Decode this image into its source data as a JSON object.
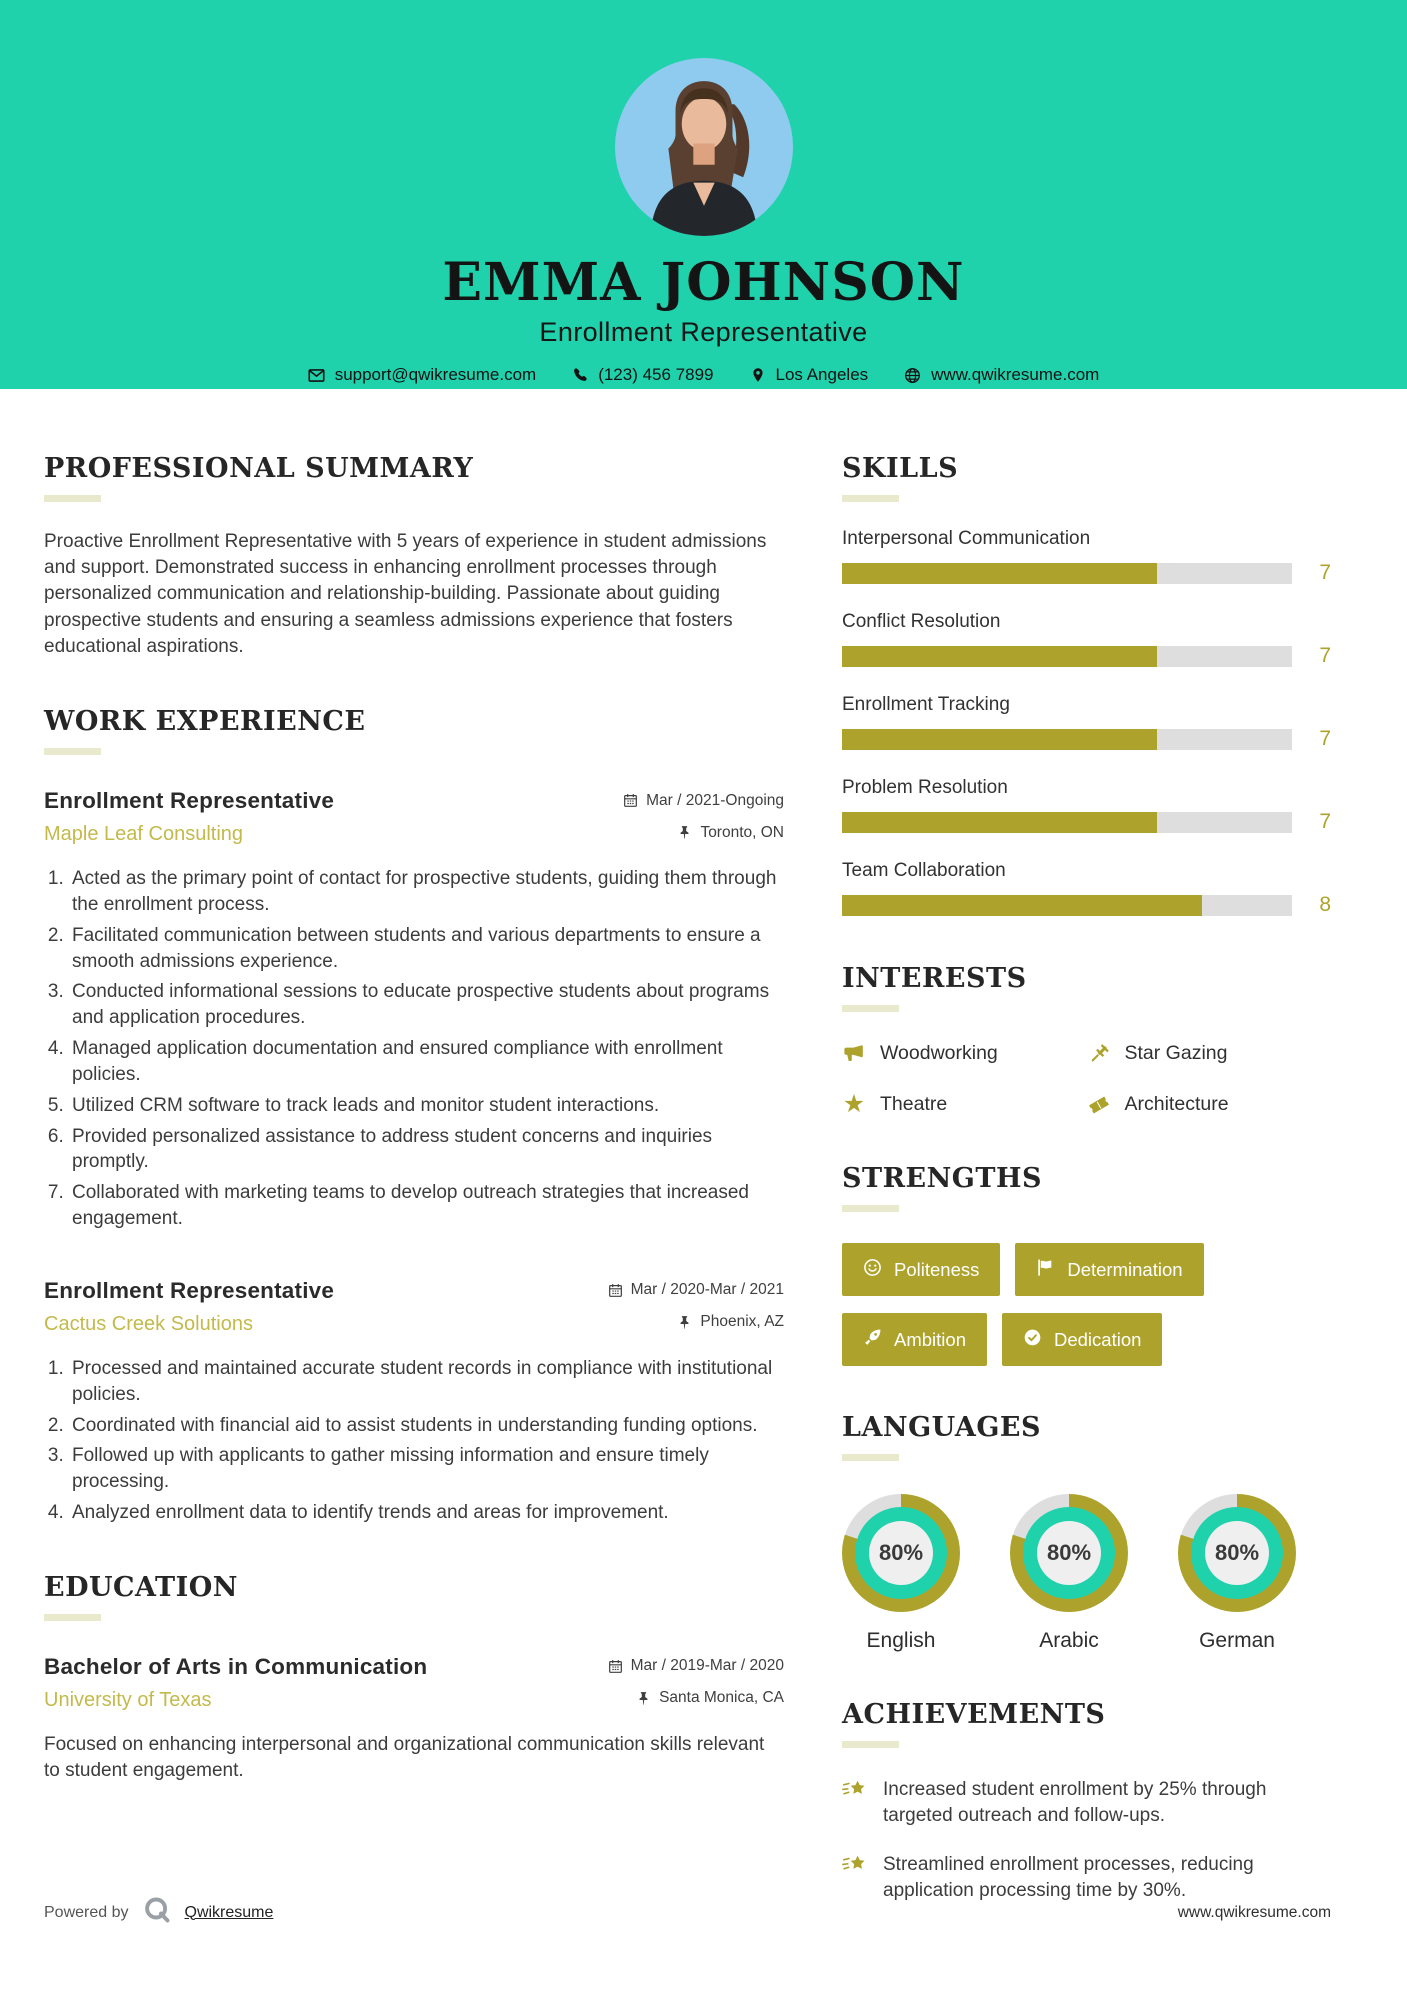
{
  "header": {
    "name": "EMMA JOHNSON",
    "title": "Enrollment Representative",
    "contacts": [
      {
        "icon": "envelope-icon",
        "text": "support@qwikresume.com"
      },
      {
        "icon": "phone-icon",
        "text": "(123) 456 7899"
      },
      {
        "icon": "map-marker-icon",
        "text": "Los Angeles"
      },
      {
        "icon": "globe-icon",
        "text": "www.qwikresume.com"
      }
    ]
  },
  "summary": {
    "heading": "PROFESSIONAL SUMMARY",
    "text": "Proactive Enrollment Representative with 5 years of experience in student admissions and support. Demonstrated success in enhancing enrollment processes through personalized communication and relationship-building. Passionate about guiding prospective students and ensuring a seamless admissions experience that fosters educational aspirations."
  },
  "work": {
    "heading": "WORK EXPERIENCE",
    "jobs": [
      {
        "title": "Enrollment Representative",
        "company": "Maple Leaf Consulting",
        "dates": "Mar / 2021-Ongoing",
        "location": "Toronto, ON",
        "bullets": [
          "Acted as the primary point of contact for prospective students, guiding them through the enrollment process.",
          "Facilitated communication between students and various departments to ensure a smooth admissions experience.",
          "Conducted informational sessions to educate prospective students about programs and application procedures.",
          "Managed application documentation and ensured compliance with enrollment policies.",
          "Utilized CRM software to track leads and monitor student interactions.",
          "Provided personalized assistance to address student concerns and inquiries promptly.",
          "Collaborated with marketing teams to develop outreach strategies that increased engagement."
        ]
      },
      {
        "title": "Enrollment Representative",
        "company": "Cactus Creek Solutions",
        "dates": "Mar / 2020-Mar / 2021",
        "location": "Phoenix, AZ",
        "bullets": [
          "Processed and maintained accurate student records in compliance with institutional policies.",
          "Coordinated with financial aid to assist students in understanding funding options.",
          "Followed up with applicants to gather missing information and ensure timely processing.",
          "Analyzed enrollment data to identify trends and areas for improvement."
        ]
      }
    ]
  },
  "education": {
    "heading": "EDUCATION",
    "degree": "Bachelor of Arts in Communication",
    "school": "University of Texas",
    "dates": "Mar / 2019-Mar / 2020",
    "location": "Santa Monica, CA",
    "description": "Focused on enhancing interpersonal and organizational communication skills relevant to student engagement."
  },
  "skills": {
    "heading": "SKILLS",
    "max": 10,
    "items": [
      {
        "label": "Interpersonal Communication",
        "value": 7
      },
      {
        "label": "Conflict Resolution",
        "value": 7
      },
      {
        "label": "Enrollment Tracking",
        "value": 7
      },
      {
        "label": "Problem Resolution",
        "value": 7
      },
      {
        "label": "Team Collaboration",
        "value": 8
      }
    ]
  },
  "interests": {
    "heading": "INTERESTS",
    "items": [
      {
        "icon": "megaphone-icon",
        "label": "Woodworking"
      },
      {
        "icon": "gavel-icon",
        "label": "Star Gazing"
      },
      {
        "icon": "star-icon",
        "label": "Theatre"
      },
      {
        "icon": "ticket-icon",
        "label": "Architecture"
      }
    ]
  },
  "strengths": {
    "heading": "STRENGTHS",
    "items": [
      {
        "icon": "smiley-icon",
        "label": "Politeness"
      },
      {
        "icon": "flag-icon",
        "label": "Determination"
      },
      {
        "icon": "rocket-icon",
        "label": "Ambition"
      },
      {
        "icon": "check-circle-icon",
        "label": "Dedication"
      }
    ]
  },
  "languages": {
    "heading": "LANGUAGES",
    "items": [
      {
        "label": "English",
        "percent": 80
      },
      {
        "label": "Arabic",
        "percent": 80
      },
      {
        "label": "German",
        "percent": 80
      }
    ]
  },
  "achievements": {
    "heading": "ACHIEVEMENTS",
    "items": [
      "Increased student enrollment by 25% through targeted outreach and follow-ups.",
      "Streamlined enrollment processes, reducing application processing time by 30%."
    ]
  },
  "footer": {
    "powered_by": "Powered by",
    "brand": "Qwikresume",
    "site": "www.qwikresume.com"
  },
  "colors": {
    "teal": "#1FD2AC",
    "olive": "#ADA32C",
    "olive_light": "#C3BA4B",
    "bar_track": "#DEDEDE",
    "underline": "#E9E9CE",
    "photo_bg": "#8FCBEE"
  }
}
